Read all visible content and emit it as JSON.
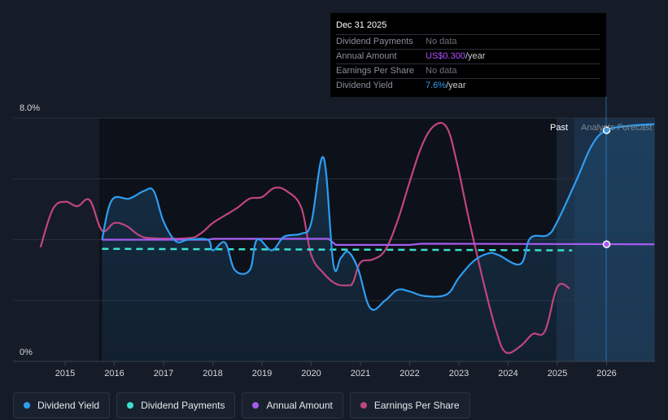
{
  "chart_data": {
    "type": "line",
    "title": "",
    "ylabel": "",
    "xlabel": "",
    "ylim": [
      0,
      8
    ],
    "y_tick_labels": [
      "8.0%",
      "0%"
    ],
    "x_tick_labels": [
      "2015",
      "2016",
      "2017",
      "2018",
      "2019",
      "2020",
      "2021",
      "2022",
      "2023",
      "2024",
      "2025",
      "2026"
    ],
    "past_label": "Past",
    "forecast_label": "Analysts Forecast",
    "series": [
      {
        "name": "Dividend Yield",
        "color": "#2e9df2",
        "points": [
          [
            2015.75,
            4.0
          ],
          [
            2015.95,
            5.3
          ],
          [
            2016.3,
            5.35
          ],
          [
            2016.6,
            5.6
          ],
          [
            2016.8,
            5.6
          ],
          [
            2017.0,
            4.6
          ],
          [
            2017.25,
            3.95
          ],
          [
            2017.5,
            4.0
          ],
          [
            2017.9,
            4.0
          ],
          [
            2018.0,
            3.65
          ],
          [
            2018.25,
            3.9
          ],
          [
            2018.45,
            3.0
          ],
          [
            2018.75,
            3.0
          ],
          [
            2018.9,
            4.0
          ],
          [
            2019.2,
            3.65
          ],
          [
            2019.45,
            4.1
          ],
          [
            2019.8,
            4.2
          ],
          [
            2020.0,
            4.55
          ],
          [
            2020.25,
            6.7
          ],
          [
            2020.45,
            3.2
          ],
          [
            2020.6,
            3.4
          ],
          [
            2020.75,
            3.6
          ],
          [
            2020.95,
            3.05
          ],
          [
            2021.2,
            1.75
          ],
          [
            2021.5,
            2.0
          ],
          [
            2021.75,
            2.35
          ],
          [
            2022.0,
            2.3
          ],
          [
            2022.3,
            2.15
          ],
          [
            2022.75,
            2.2
          ],
          [
            2023.0,
            2.75
          ],
          [
            2023.3,
            3.3
          ],
          [
            2023.6,
            3.55
          ],
          [
            2023.8,
            3.5
          ],
          [
            2024.25,
            3.2
          ],
          [
            2024.45,
            4.05
          ],
          [
            2024.8,
            4.15
          ],
          [
            2025.0,
            4.6
          ],
          [
            2025.4,
            6.0
          ],
          [
            2025.7,
            7.1
          ],
          [
            2026.0,
            7.6
          ],
          [
            2026.5,
            7.75
          ],
          [
            2026.97,
            7.8
          ]
        ]
      },
      {
        "name": "Dividend Payments",
        "color": "#3de0d0",
        "points": [
          [
            2015.75,
            3.7
          ],
          [
            2025.3,
            3.65
          ]
        ]
      },
      {
        "name": "Annual Amount",
        "color": "#a55cf0",
        "points": [
          [
            2015.75,
            4.0
          ],
          [
            2017.9,
            4.0
          ],
          [
            2018.0,
            4.03
          ],
          [
            2020.35,
            4.03
          ],
          [
            2020.5,
            3.83
          ],
          [
            2022.0,
            3.83
          ],
          [
            2022.25,
            3.87
          ],
          [
            2026.97,
            3.85
          ]
        ]
      },
      {
        "name": "Earnings Per Share",
        "color": "#c0457f",
        "points": [
          [
            2014.5,
            3.75
          ],
          [
            2014.75,
            5.0
          ],
          [
            2015.0,
            5.25
          ],
          [
            2015.25,
            5.1
          ],
          [
            2015.5,
            5.3
          ],
          [
            2015.75,
            4.3
          ],
          [
            2016.0,
            4.55
          ],
          [
            2016.25,
            4.45
          ],
          [
            2016.5,
            4.15
          ],
          [
            2016.75,
            4.05
          ],
          [
            2017.5,
            4.05
          ],
          [
            2017.75,
            4.2
          ],
          [
            2018.0,
            4.55
          ],
          [
            2018.25,
            4.8
          ],
          [
            2018.5,
            5.05
          ],
          [
            2018.75,
            5.35
          ],
          [
            2019.0,
            5.4
          ],
          [
            2019.25,
            5.7
          ],
          [
            2019.5,
            5.6
          ],
          [
            2019.8,
            5.05
          ],
          [
            2020.0,
            3.5
          ],
          [
            2020.25,
            2.9
          ],
          [
            2020.5,
            2.55
          ],
          [
            2020.75,
            2.5
          ],
          [
            2020.85,
            2.6
          ],
          [
            2021.0,
            3.25
          ],
          [
            2021.25,
            3.35
          ],
          [
            2021.5,
            3.65
          ],
          [
            2021.75,
            4.6
          ],
          [
            2022.0,
            5.9
          ],
          [
            2022.25,
            7.1
          ],
          [
            2022.5,
            7.75
          ],
          [
            2022.75,
            7.7
          ],
          [
            2022.95,
            6.6
          ],
          [
            2023.2,
            4.7
          ],
          [
            2023.5,
            2.6
          ],
          [
            2023.75,
            1.05
          ],
          [
            2023.95,
            0.3
          ],
          [
            2024.25,
            0.5
          ],
          [
            2024.5,
            0.9
          ],
          [
            2024.75,
            1.0
          ],
          [
            2025.0,
            2.45
          ],
          [
            2025.25,
            2.4
          ]
        ]
      }
    ],
    "highlight_markers": [
      {
        "series": "Dividend Yield",
        "x": 2026.0,
        "y": 7.6
      },
      {
        "series": "Annual Amount",
        "x": 2026.0,
        "y": 3.85
      }
    ]
  },
  "tooltip": {
    "date": "Dec 31 2025",
    "rows": [
      {
        "label": "Dividend Payments",
        "value": "No data",
        "suffix": ""
      },
      {
        "label": "Annual Amount",
        "value": "US$0.300",
        "suffix": "/year"
      },
      {
        "label": "Earnings Per Share",
        "value": "No data",
        "suffix": ""
      },
      {
        "label": "Dividend Yield",
        "value": "7.6%",
        "suffix": "/year"
      }
    ]
  },
  "legend": {
    "items": [
      {
        "label": "Dividend Yield",
        "color": "#2e9df2"
      },
      {
        "label": "Dividend Payments",
        "color": "#3de0d0"
      },
      {
        "label": "Annual Amount",
        "color": "#a55cf0"
      },
      {
        "label": "Earnings Per Share",
        "color": "#c0457f"
      }
    ]
  }
}
